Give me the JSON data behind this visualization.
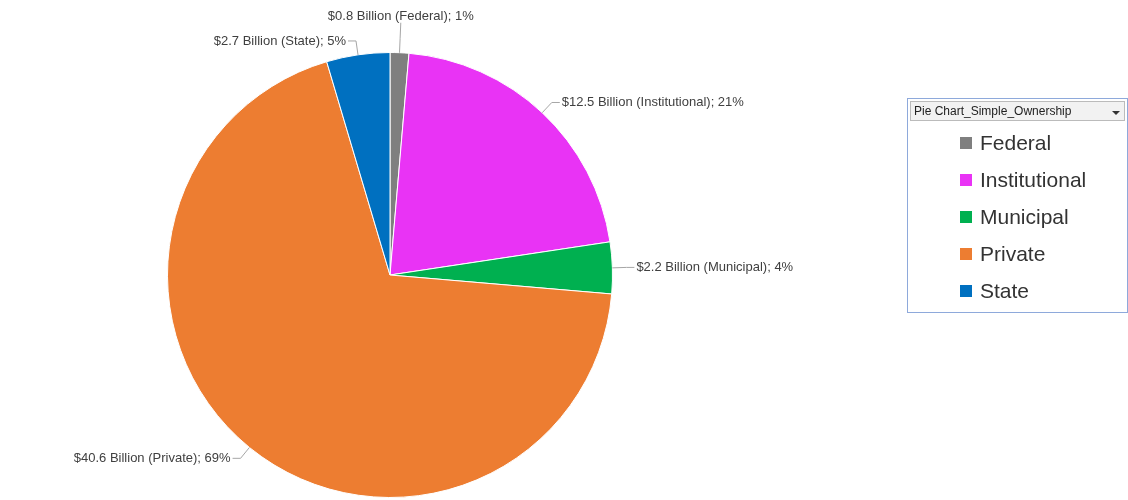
{
  "chart_data": {
    "type": "pie",
    "legend_title": "Pie Chart_Simple_Ownership",
    "legend": "right",
    "categories": [
      "Federal",
      "Institutional",
      "Municipal",
      "Private",
      "State"
    ],
    "values": [
      0.8,
      12.5,
      2.2,
      40.6,
      2.7
    ],
    "colors": [
      "#7f7f7f",
      "#e933f5",
      "#00b050",
      "#ed7d31",
      "#0070c0"
    ],
    "value_labels": [
      "$0.8 Billion (Federal); 1%",
      "$12.5 Billion (Institutional); 21%",
      "$2.2 Billion (Municipal); 4%",
      "$40.6 Billion (Private); 69%",
      "$2.7 Billion (State); 5%"
    ]
  }
}
